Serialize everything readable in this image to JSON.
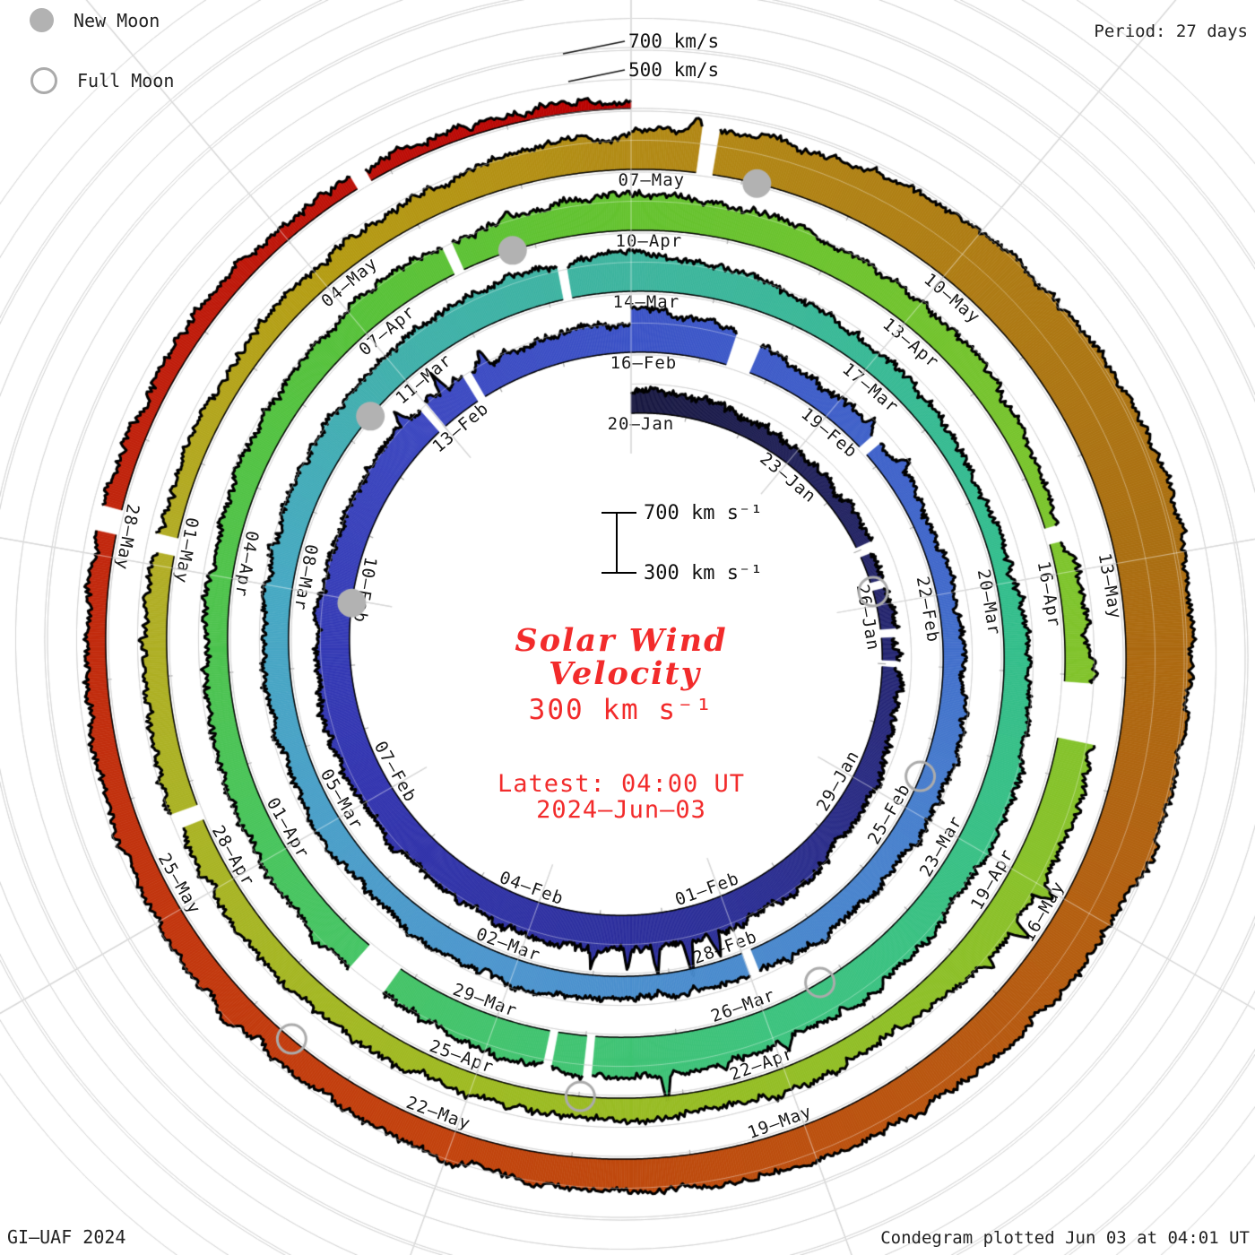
{
  "header": {
    "legend": [
      {
        "type": "new",
        "label": "New Moon"
      },
      {
        "type": "full",
        "label": "Full Moon"
      }
    ],
    "period_label": "Period: 27 days"
  },
  "footer": {
    "left": "GI–UAF 2024",
    "right": "Condegram plotted Jun 03 at 04:01 UT"
  },
  "radial_scale": {
    "outer_label_700": "700 km/s",
    "outer_label_500": "500 km/s",
    "center_bar_top": "700 km s⁻¹",
    "center_bar_bottom": "300 km s⁻¹"
  },
  "center": {
    "title_line1": "Solar Wind",
    "title_line2": "Velocity",
    "baseline_label": "300 km s⁻¹",
    "latest_line1": "Latest: 04:00 UT",
    "latest_line2": "2024–Jun–03"
  },
  "chart_data": {
    "type": "spiral-polar condegram",
    "title": "Solar Wind Velocity",
    "period_days": 27,
    "start_date": "2024-01-20",
    "latest": "2024-Jun-03 04:00 UT",
    "baseline_kms": 300,
    "gridlines_kms": [
      300,
      500,
      700
    ],
    "direction": "time runs clockwise and spirals outward; band height above the 300 km/s baseline is velocity",
    "rings": [
      {
        "start": "20-Jan",
        "labels": [
          "20–Jan",
          "23–Jan",
          "26–Jan",
          "29–Jan",
          "01–Feb",
          "04–Feb",
          "07–Feb",
          "10–Feb",
          "13–Feb"
        ],
        "velocity_knots_kms": [
          455,
          415,
          390,
          430,
          505,
          545,
          525,
          545,
          515,
          500,
          485
        ]
      },
      {
        "start": "16-Feb",
        "labels": [
          "16–Feb",
          "19–Feb",
          "22–Feb",
          "25–Feb",
          "28–Feb",
          "02–Mar",
          "05–Mar",
          "08–Mar",
          "11–Mar"
        ],
        "velocity_knots_kms": [
          600,
          450,
          400,
          485,
          470,
          460,
          465,
          470,
          480,
          525,
          550
        ]
      },
      {
        "start": "14-Mar",
        "labels": [
          "14–Mar",
          "17–Mar",
          "20–Mar",
          "23–Mar",
          "26–Mar",
          "29–Mar",
          "01–Apr",
          "04–Apr",
          "07–Apr"
        ],
        "velocity_knots_kms": [
          575,
          455,
          400,
          520,
          540,
          580,
          515,
          487,
          455,
          515,
          550
        ]
      },
      {
        "start": "10-Apr",
        "labels": [
          "10–Apr",
          "13–Apr",
          "16–Apr",
          "19–Apr",
          "22–Apr",
          "25–Apr",
          "28–Apr",
          "01–May",
          "04–May"
        ],
        "velocity_knots_kms": [
          545,
          490,
          385,
          560,
          470,
          440,
          460,
          480,
          425,
          455,
          545
        ]
      },
      {
        "start": "07-May",
        "labels": [
          "07–May",
          "10–May",
          "13–May",
          "16–May",
          "19–May",
          "22–May",
          "25–May",
          "28–May"
        ],
        "velocity_knots_kms": [
          575,
          690,
          780,
          720,
          580,
          515,
          488,
          472,
          425,
          402,
          350
        ]
      }
    ],
    "data_gaps_turn_frac_width": [
      [
        0,
        0.183,
        0.006
      ],
      [
        0,
        0.207,
        0.005
      ],
      [
        0,
        0.238,
        0.005
      ],
      [
        0,
        0.257,
        0.004
      ],
      [
        0,
        0.885,
        0.004
      ],
      [
        0,
        0.912,
        0.004
      ],
      [
        1,
        0.052,
        0.012
      ],
      [
        1,
        0.135,
        0.005
      ],
      [
        1,
        0.44,
        0.004
      ],
      [
        1,
        0.97,
        0.003
      ],
      [
        2,
        0.515,
        0.003
      ],
      [
        2,
        0.53,
        0.003
      ],
      [
        2,
        0.6,
        0.015
      ],
      [
        2,
        0.93,
        0.004
      ],
      [
        3,
        0.205,
        0.006
      ],
      [
        3,
        0.262,
        0.02
      ],
      [
        3,
        0.69,
        0.005
      ],
      [
        3,
        0.782,
        0.006
      ],
      [
        4,
        0.022,
        0.005
      ],
      [
        4,
        0.785,
        0.007
      ],
      [
        4,
        0.915,
        0.004
      ]
    ],
    "spikes_turn_frac_extra_width": [
      [
        0,
        0.455,
        180,
        0.006
      ],
      [
        0,
        0.47,
        230,
        0.005
      ],
      [
        0,
        0.487,
        200,
        0.005
      ],
      [
        0,
        0.502,
        160,
        0.005
      ],
      [
        0,
        0.52,
        120,
        0.005
      ],
      [
        0,
        0.875,
        120,
        0.005
      ],
      [
        0,
        0.9,
        150,
        0.005
      ],
      [
        0,
        0.925,
        100,
        0.005
      ],
      [
        1,
        0.13,
        90,
        0.006
      ],
      [
        1,
        0.155,
        70,
        0.006
      ],
      [
        2,
        0.44,
        80,
        0.006
      ],
      [
        2,
        0.487,
        200,
        0.004
      ],
      [
        3,
        0.335,
        150,
        0.005
      ],
      [
        3,
        0.35,
        120,
        0.005
      ],
      [
        3,
        0.365,
        100,
        0.004
      ],
      [
        4,
        0.02,
        90,
        0.005
      ]
    ],
    "color_stops": [
      [
        0.0,
        "#17173f"
      ],
      [
        0.22,
        "#23246b"
      ],
      [
        0.45,
        "#2a2d96"
      ],
      [
        0.67,
        "#3032ae"
      ],
      [
        0.89,
        "#3a46c0"
      ],
      [
        1.0,
        "#3a52c6"
      ],
      [
        1.22,
        "#3f68ca"
      ],
      [
        1.33,
        "#457dcc"
      ],
      [
        1.56,
        "#4b94cd"
      ],
      [
        1.78,
        "#45a8c2"
      ],
      [
        1.89,
        "#3eafaa"
      ],
      [
        2.0,
        "#3cb49d"
      ],
      [
        2.22,
        "#32bd8c"
      ],
      [
        2.44,
        "#3bc27d"
      ],
      [
        2.67,
        "#47c45c"
      ],
      [
        2.89,
        "#56c138"
      ],
      [
        3.0,
        "#64c22e"
      ],
      [
        3.22,
        "#7dc42c"
      ],
      [
        3.56,
        "#9eba21"
      ],
      [
        3.78,
        "#b1ad25"
      ],
      [
        3.89,
        "#b49c12"
      ],
      [
        4.0,
        "#b28a15"
      ],
      [
        4.22,
        "#aa6e11"
      ],
      [
        4.44,
        "#bb500e"
      ],
      [
        4.56,
        "#c2420d"
      ],
      [
        4.78,
        "#c1270d"
      ],
      [
        4.95,
        "#bb0a06"
      ],
      [
        5.0,
        "#b80000"
      ]
    ],
    "moons": [
      {
        "phase": "full",
        "date": "25-Jan",
        "t": 0.213
      },
      {
        "phase": "new",
        "date": "09-Feb",
        "t": 0.776
      },
      {
        "phase": "full",
        "date": "24-Feb",
        "t": 1.316
      },
      {
        "phase": "new",
        "date": "10-Mar",
        "t": 1.866
      },
      {
        "phase": "full",
        "date": "25-Mar",
        "t": 2.418
      },
      {
        "phase": "new",
        "date": "08-Apr",
        "t": 2.954
      },
      {
        "phase": "full",
        "date": "23-Apr",
        "t": 3.518
      },
      {
        "phase": "new",
        "date": "08-May",
        "t": 4.042
      },
      {
        "phase": "full",
        "date": "23-May",
        "t": 4.614
      }
    ]
  }
}
